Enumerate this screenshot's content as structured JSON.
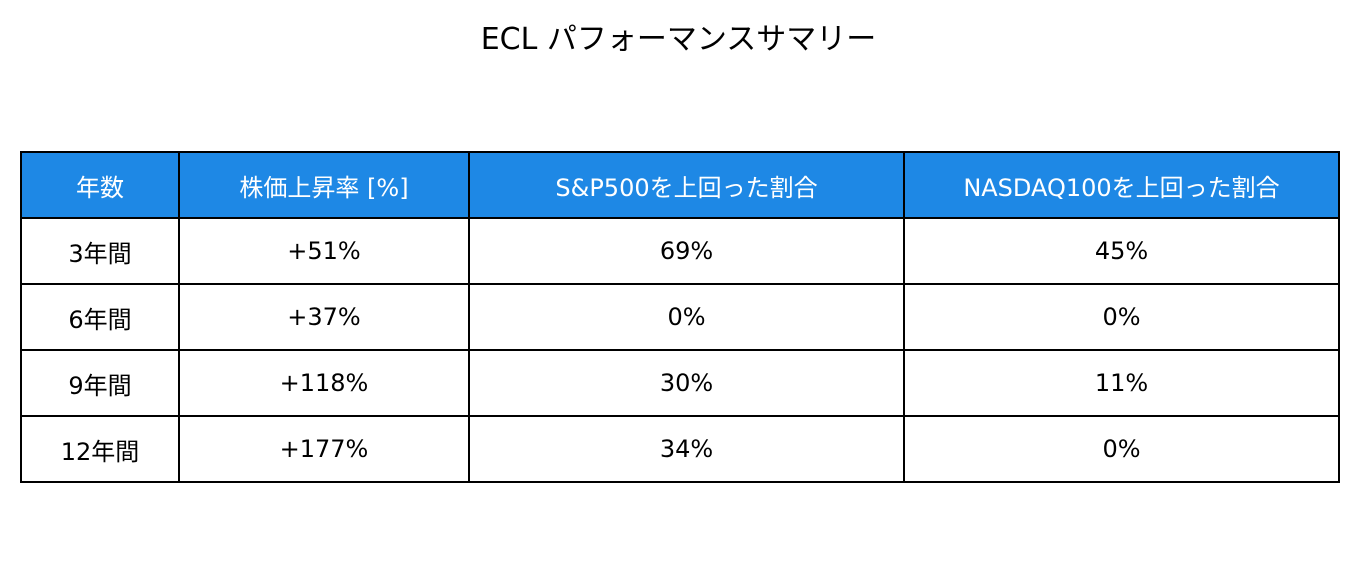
{
  "title": "ECL パフォーマンスサマリー",
  "table": {
    "header": [
      "年数",
      "株価上昇率 [%]",
      "S&P500を上回った割合",
      "NASDAQ100を上回った割合"
    ],
    "rows": [
      [
        "3年間",
        "+51%",
        "69%",
        "45%"
      ],
      [
        "6年間",
        "+37%",
        "0%",
        "0%"
      ],
      [
        "9年間",
        "+118%",
        "30%",
        "11%"
      ],
      [
        "12年間",
        "+177%",
        "34%",
        "0%"
      ]
    ]
  }
}
